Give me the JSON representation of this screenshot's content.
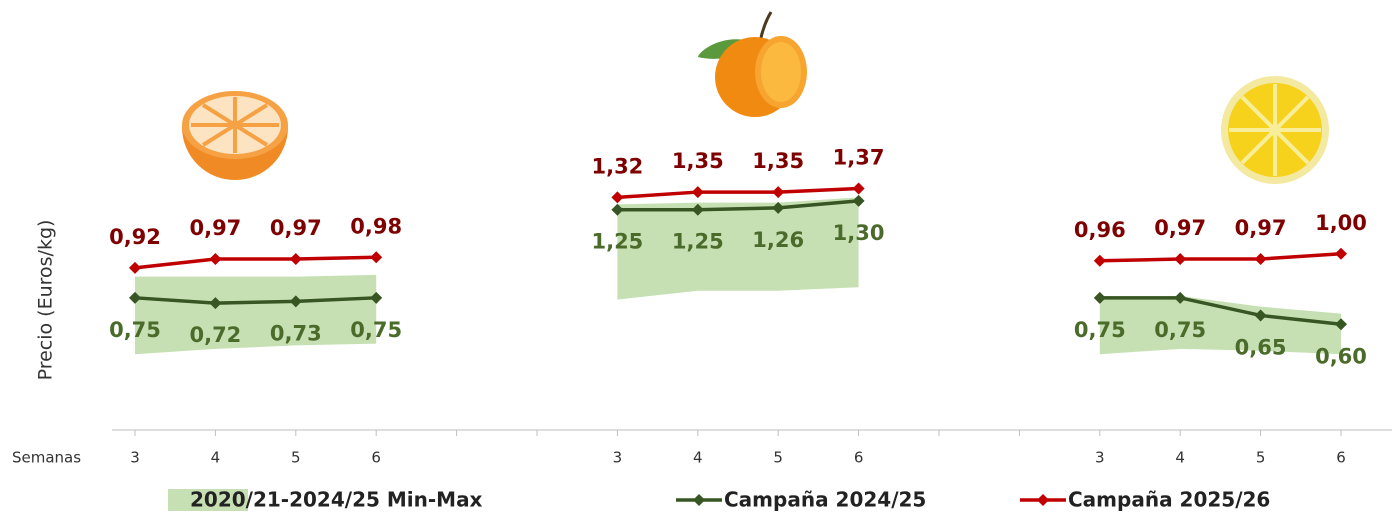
{
  "chart_data": {
    "type": "line",
    "y_label": "Precio (Euros/kg)",
    "x_label": "Semanas",
    "categories": [
      "3",
      "4",
      "5",
      "6",
      null,
      null,
      "3",
      "4",
      "5",
      "6",
      null,
      null,
      "3",
      "4",
      "5",
      "6"
    ],
    "ylim": [
      0,
      1.6
    ],
    "band": {
      "name": "2020/21-2024/25 Min-Max",
      "color": "#c6e0b4",
      "low": [
        0.43,
        0.46,
        0.48,
        0.49,
        null,
        null,
        0.74,
        0.79,
        0.79,
        0.81,
        null,
        null,
        0.43,
        0.46,
        0.45,
        0.43
      ],
      "high": [
        0.87,
        0.87,
        0.87,
        0.88,
        null,
        null,
        1.28,
        1.29,
        1.29,
        1.32,
        null,
        null,
        0.76,
        0.76,
        0.7,
        0.66
      ]
    },
    "series": [
      {
        "name": "Campaña 2024/25",
        "color": "#375623",
        "label_color": "#4a6b2a",
        "label_side": "below",
        "values": [
          0.75,
          0.72,
          0.73,
          0.75,
          null,
          null,
          1.25,
          1.25,
          1.26,
          1.3,
          null,
          null,
          0.75,
          0.75,
          0.65,
          0.6
        ],
        "value_labels": [
          "0,75",
          "0,72",
          "0,73",
          "0,75",
          null,
          null,
          "1,25",
          "1,25",
          "1,26",
          "1,30",
          null,
          null,
          "0,75",
          "0,75",
          "0,65",
          "0,60"
        ]
      },
      {
        "name": "Campaña 2025/26",
        "color": "#c00000",
        "label_color": "#7f0000",
        "label_side": "above",
        "values": [
          0.92,
          0.97,
          0.97,
          0.98,
          null,
          null,
          1.32,
          1.35,
          1.35,
          1.37,
          null,
          null,
          0.96,
          0.97,
          0.97,
          1.0
        ],
        "value_labels": [
          "0,92",
          "0,97",
          "0,97",
          "0,98",
          null,
          null,
          "1,32",
          "1,35",
          "1,35",
          "1,37",
          null,
          null,
          "0,96",
          "0,97",
          "0,97",
          "1,00"
        ]
      }
    ]
  }
}
